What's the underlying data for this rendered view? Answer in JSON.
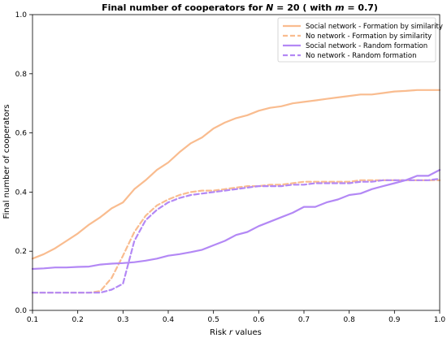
{
  "chart_data": {
    "type": "line",
    "title": {
      "prefix": "Final number of cooperators for ",
      "var1": "N",
      "mid1": " = 20 ( with ",
      "var2": "m",
      "mid2": " = 0.7)"
    },
    "xlabel": {
      "prefix": "Risk ",
      "var": "r",
      "suffix": " values"
    },
    "ylabel": "Final number of cooperators",
    "xlim": [
      0.1,
      1.0
    ],
    "ylim": [
      0.0,
      1.0
    ],
    "xticks": [
      "0.1",
      "0.2",
      "0.3",
      "0.4",
      "0.5",
      "0.6",
      "0.7",
      "0.8",
      "0.9",
      "1.0"
    ],
    "yticks": [
      "0.0",
      "0.2",
      "0.4",
      "0.6",
      "0.8",
      "1.0"
    ],
    "grid": false,
    "legend_position": "top-right",
    "x": [
      0.1,
      0.125,
      0.15,
      0.175,
      0.2,
      0.225,
      0.25,
      0.275,
      0.3,
      0.325,
      0.35,
      0.375,
      0.4,
      0.425,
      0.45,
      0.475,
      0.5,
      0.525,
      0.55,
      0.575,
      0.6,
      0.625,
      0.65,
      0.675,
      0.7,
      0.725,
      0.75,
      0.775,
      0.8,
      0.825,
      0.85,
      0.875,
      0.9,
      0.925,
      0.95,
      0.975,
      1.0
    ],
    "series": [
      {
        "name": "Social network - Formation by similarity",
        "color": "#f9bc8f",
        "dash": "solid",
        "values": [
          0.175,
          0.19,
          0.21,
          0.235,
          0.26,
          0.29,
          0.315,
          0.345,
          0.365,
          0.41,
          0.44,
          0.475,
          0.5,
          0.535,
          0.565,
          0.585,
          0.615,
          0.635,
          0.65,
          0.66,
          0.675,
          0.685,
          0.69,
          0.7,
          0.705,
          0.71,
          0.715,
          0.72,
          0.725,
          0.73,
          0.73,
          0.735,
          0.74,
          0.742,
          0.745,
          0.745,
          0.745
        ]
      },
      {
        "name": "No network - Formation by similarity",
        "color": "#f9bc8f",
        "dash": "dashed",
        "values": [
          0.06,
          0.06,
          0.06,
          0.06,
          0.06,
          0.06,
          0.065,
          0.11,
          0.185,
          0.265,
          0.32,
          0.355,
          0.375,
          0.39,
          0.4,
          0.405,
          0.405,
          0.41,
          0.415,
          0.42,
          0.42,
          0.425,
          0.425,
          0.43,
          0.435,
          0.435,
          0.435,
          0.435,
          0.435,
          0.44,
          0.44,
          0.44,
          0.44,
          0.44,
          0.44,
          0.44,
          0.44
        ]
      },
      {
        "name": "Social network - Random formation",
        "color": "#b388f5",
        "dash": "solid",
        "values": [
          0.14,
          0.142,
          0.145,
          0.145,
          0.147,
          0.148,
          0.155,
          0.158,
          0.16,
          0.163,
          0.168,
          0.175,
          0.185,
          0.19,
          0.197,
          0.205,
          0.22,
          0.235,
          0.255,
          0.265,
          0.285,
          0.3,
          0.315,
          0.33,
          0.35,
          0.35,
          0.365,
          0.375,
          0.39,
          0.395,
          0.41,
          0.42,
          0.43,
          0.44,
          0.455,
          0.455,
          0.475
        ]
      },
      {
        "name": "No network - Random formation",
        "color": "#b388f5",
        "dash": "dashed",
        "values": [
          0.06,
          0.06,
          0.06,
          0.06,
          0.06,
          0.06,
          0.06,
          0.07,
          0.09,
          0.235,
          0.305,
          0.34,
          0.365,
          0.38,
          0.39,
          0.395,
          0.4,
          0.405,
          0.41,
          0.415,
          0.42,
          0.42,
          0.42,
          0.425,
          0.425,
          0.43,
          0.43,
          0.43,
          0.43,
          0.435,
          0.435,
          0.44,
          0.44,
          0.44,
          0.44,
          0.44,
          0.445
        ]
      }
    ]
  }
}
